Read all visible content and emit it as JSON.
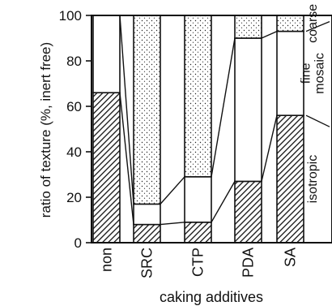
{
  "chart_data": {
    "type": "bar",
    "stacked": true,
    "xlabel": "caking additives",
    "ylabel": "ratio of texture (%, inert free)",
    "ylim": [
      0,
      100
    ],
    "yticks": [
      0,
      20,
      40,
      60,
      80,
      100
    ],
    "categories": [
      "non",
      "SRC",
      "CTP",
      "PDA",
      "SA"
    ],
    "series": [
      {
        "name": "isotropic",
        "values": [
          66,
          8,
          9,
          27,
          56
        ],
        "pattern": "hatch"
      },
      {
        "name": "fine mosaic",
        "values": [
          34,
          9,
          20,
          63,
          37
        ],
        "pattern": "plain"
      },
      {
        "name": "coarse",
        "values": [
          0,
          83,
          71,
          10,
          7
        ],
        "pattern": "dots"
      }
    ],
    "legend_placement": "right",
    "grid": false
  }
}
